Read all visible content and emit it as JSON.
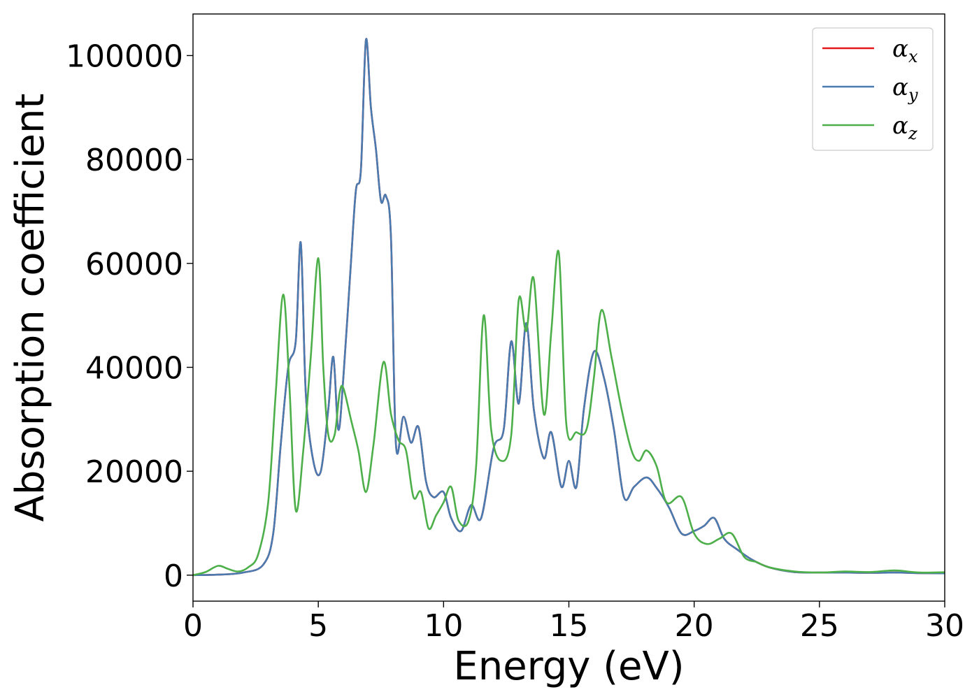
{
  "chart_data": {
    "type": "line",
    "xlabel": "Energy (eV)",
    "ylabel": "Absorption coefficient",
    "xlim": [
      0,
      30
    ],
    "ylim": [
      -5000,
      108000
    ],
    "xticks": [
      "0",
      "5",
      "10",
      "15",
      "20",
      "25",
      "30"
    ],
    "yticks": [
      "0",
      "20000",
      "40000",
      "60000",
      "80000",
      "100000"
    ],
    "legend_position": "top-right",
    "grid": false,
    "series": [
      {
        "name": "α",
        "subscript": "x",
        "color": "#e41a1c",
        "x": [
          0,
          1,
          2,
          2.8,
          3.2,
          3.5,
          3.8,
          4.1,
          4.3,
          4.5,
          4.8,
          5.1,
          5.4,
          5.6,
          5.8,
          6.0,
          6.3,
          6.5,
          6.7,
          6.9,
          7.1,
          7.3,
          7.5,
          7.7,
          7.9,
          8.1,
          8.4,
          8.7,
          9.0,
          9.3,
          9.6,
          10.0,
          10.3,
          10.7,
          11.1,
          11.5,
          12.0,
          12.4,
          12.7,
          13.0,
          13.3,
          13.6,
          14.0,
          14.3,
          14.7,
          15.0,
          15.3,
          15.6,
          16.0,
          16.4,
          16.8,
          17.2,
          17.6,
          18.1,
          18.5,
          19.0,
          19.5,
          20.0,
          20.4,
          20.8,
          21.2,
          21.7,
          22.3,
          23.0,
          24.0,
          25.0,
          26.0,
          27.0,
          28.0,
          29.0,
          30.0
        ],
        "y": [
          0,
          100,
          500,
          2000,
          8000,
          25000,
          40000,
          45000,
          64000,
          35000,
          22000,
          20000,
          32000,
          42000,
          28000,
          38000,
          60000,
          74000,
          78000,
          103000,
          90000,
          82000,
          72000,
          73000,
          65000,
          25000,
          30500,
          25500,
          28500,
          18000,
          15000,
          16000,
          11000,
          8500,
          13500,
          11000,
          24500,
          28000,
          45000,
          33000,
          48500,
          32000,
          22500,
          27500,
          17000,
          22000,
          17000,
          32000,
          43000,
          38000,
          28000,
          15000,
          17000,
          18800,
          16800,
          13000,
          8000,
          8500,
          9500,
          11000,
          7000,
          5000,
          3000,
          1500,
          600,
          500,
          500,
          450,
          500,
          400,
          350
        ]
      },
      {
        "name": "α",
        "subscript": "y",
        "color": "#4a7bb0",
        "x": [
          0,
          1,
          2,
          2.8,
          3.2,
          3.5,
          3.8,
          4.1,
          4.3,
          4.5,
          4.8,
          5.1,
          5.4,
          5.6,
          5.8,
          6.0,
          6.3,
          6.5,
          6.7,
          6.9,
          7.1,
          7.3,
          7.5,
          7.7,
          7.9,
          8.1,
          8.4,
          8.7,
          9.0,
          9.3,
          9.6,
          10.0,
          10.3,
          10.7,
          11.1,
          11.5,
          12.0,
          12.4,
          12.7,
          13.0,
          13.3,
          13.6,
          14.0,
          14.3,
          14.7,
          15.0,
          15.3,
          15.6,
          16.0,
          16.4,
          16.8,
          17.2,
          17.6,
          18.1,
          18.5,
          19.0,
          19.5,
          20.0,
          20.4,
          20.8,
          21.2,
          21.7,
          22.3,
          23.0,
          24.0,
          25.0,
          26.0,
          27.0,
          28.0,
          29.0,
          30.0
        ],
        "y": [
          0,
          100,
          500,
          2000,
          8000,
          25000,
          40000,
          45000,
          64000,
          35000,
          22000,
          20000,
          32000,
          42000,
          28000,
          38000,
          60000,
          74000,
          78000,
          103000,
          90000,
          82000,
          72000,
          73000,
          65000,
          25000,
          30500,
          25500,
          28500,
          18000,
          15000,
          16000,
          11000,
          8500,
          13500,
          11000,
          24500,
          28000,
          45000,
          33000,
          48500,
          32000,
          22500,
          27500,
          17000,
          22000,
          17000,
          32000,
          43000,
          38000,
          28000,
          15000,
          17000,
          18800,
          16800,
          13000,
          8000,
          8500,
          9500,
          11000,
          7000,
          5000,
          3000,
          1500,
          600,
          500,
          500,
          450,
          500,
          400,
          350
        ]
      },
      {
        "name": "α",
        "subscript": "z",
        "color": "#4daf4a",
        "x": [
          0,
          0.5,
          1.0,
          1.4,
          1.8,
          2.2,
          2.6,
          3.0,
          3.3,
          3.6,
          3.85,
          4.1,
          4.4,
          4.7,
          5.0,
          5.2,
          5.4,
          5.65,
          5.85,
          6.0,
          6.3,
          6.6,
          6.9,
          7.2,
          7.6,
          7.9,
          8.2,
          8.5,
          8.8,
          9.1,
          9.4,
          9.7,
          10.0,
          10.3,
          10.6,
          11.0,
          11.3,
          11.6,
          11.9,
          12.3,
          12.7,
          13.0,
          13.3,
          13.6,
          14.0,
          14.3,
          14.6,
          14.9,
          15.3,
          15.7,
          16.0,
          16.3,
          16.7,
          17.1,
          17.5,
          17.8,
          18.1,
          18.5,
          18.9,
          19.5,
          20.0,
          20.5,
          21.0,
          21.5,
          22.0,
          22.5,
          23.0,
          24.0,
          25.0,
          26.0,
          27.0,
          28.0,
          29.0,
          30.0
        ],
        "y": [
          0,
          600,
          1800,
          1200,
          700,
          1500,
          4000,
          14000,
          35000,
          54000,
          36000,
          12500,
          24000,
          42000,
          61000,
          40000,
          27000,
          27000,
          35000,
          36000,
          30000,
          24000,
          16000,
          25000,
          41000,
          31000,
          26000,
          24000,
          15000,
          16000,
          9000,
          11500,
          14000,
          17000,
          10500,
          10500,
          21000,
          50000,
          28000,
          22000,
          27000,
          53000,
          47000,
          57000,
          31000,
          47000,
          62000,
          29000,
          27500,
          28000,
          38000,
          51000,
          42000,
          32000,
          24000,
          22000,
          24000,
          21000,
          14000,
          15000,
          8000,
          6000,
          7000,
          8000,
          3500,
          2500,
          1500,
          700,
          500,
          700,
          600,
          900,
          500,
          550
        ]
      }
    ]
  }
}
